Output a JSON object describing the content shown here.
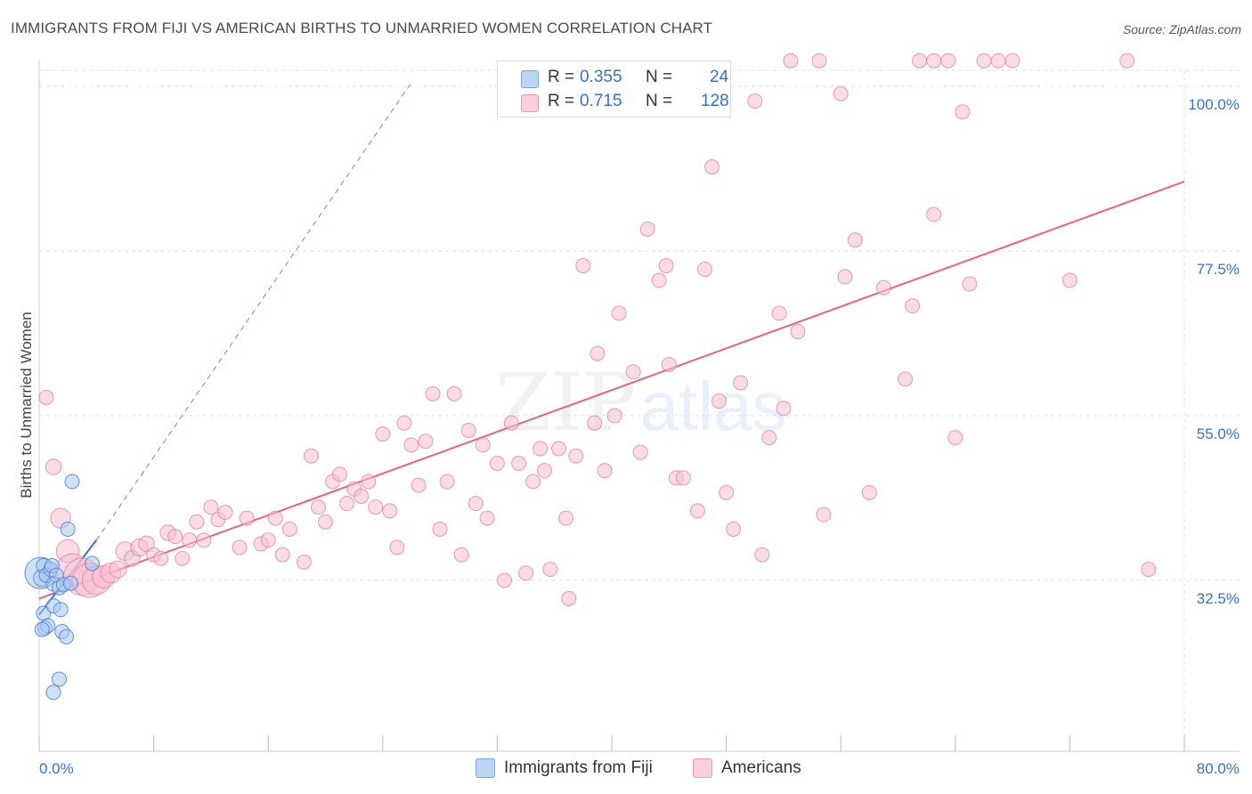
{
  "header": {
    "title": "IMMIGRANTS FROM FIJI VS AMERICAN BIRTHS TO UNMARRIED WOMEN CORRELATION CHART",
    "source": "Source: ZipAtlas.com"
  },
  "watermark": {
    "zip": "ZIP",
    "atlas": "atlas"
  },
  "legend": {
    "r_label": "R =",
    "n_label": "N =",
    "fiji": {
      "r": "0.355",
      "n": "24"
    },
    "americans": {
      "r": "0.715",
      "n": "128"
    }
  },
  "colors": {
    "fiji_fill": "#aac8f0",
    "fiji_stroke": "#4a7fd0",
    "fiji_line": "#3a72cc",
    "americans_fill": "#f7c0d2",
    "americans_stroke": "#e27aa0",
    "americans_line": "#e0628f",
    "grid": "#dddddd",
    "tick_label": "#3a6fc8"
  },
  "chart_data": {
    "type": "scatter",
    "title": "IMMIGRANTS FROM FIJI VS AMERICAN BIRTHS TO UNMARRIED WOMEN CORRELATION CHART",
    "xlabel": "",
    "ylabel": "Births to Unmarried Women",
    "xlim": [
      0,
      80
    ],
    "ylim": [
      11,
      102
    ],
    "x_tick_labels": [
      "0.0%",
      "80.0%"
    ],
    "y_ticks": [
      32.5,
      55.0,
      77.5,
      100.0
    ],
    "y_tick_labels": [
      "32.5%",
      "55.0%",
      "77.5%",
      "100.0%"
    ],
    "grid": true,
    "legend_bottom": [
      "Immigrants from Fiji",
      "Americans"
    ],
    "series": [
      {
        "name": "Immigrants from Fiji",
        "R": 0.355,
        "N": 24,
        "trend": {
          "x0": 0.0,
          "y0": 27.8,
          "x1": 4.0,
          "y1": 38.0
        },
        "trend_dashed": {
          "x0": 4.0,
          "y0": 38.0,
          "x1": 26.0,
          "y1": 100.5
        },
        "points": [
          [
            0.1,
            33.5,
            2.2
          ],
          [
            0.2,
            32.8,
            1.2
          ],
          [
            0.3,
            34.5,
            1.0
          ],
          [
            0.5,
            33.2,
            1.0
          ],
          [
            0.8,
            34.0,
            1.0
          ],
          [
            0.9,
            34.5,
            1.0
          ],
          [
            1.2,
            33.2,
            1.0
          ],
          [
            1.0,
            32.0,
            1.0
          ],
          [
            1.4,
            31.5,
            1.0
          ],
          [
            1.7,
            31.9,
            1.0
          ],
          [
            2.2,
            32.1,
            1.0
          ],
          [
            3.7,
            34.8,
            1.0
          ],
          [
            2.0,
            39.5,
            1.0
          ],
          [
            2.3,
            46.0,
            1.0
          ],
          [
            0.3,
            28.0,
            1.0
          ],
          [
            1.0,
            29.0,
            1.0
          ],
          [
            1.5,
            28.5,
            1.0
          ],
          [
            0.4,
            26.0,
            1.0
          ],
          [
            0.6,
            26.3,
            1.0
          ],
          [
            1.6,
            25.5,
            1.0
          ],
          [
            1.9,
            24.8,
            1.0
          ],
          [
            1.4,
            19.0,
            1.0
          ],
          [
            1.0,
            17.2,
            1.0
          ],
          [
            0.2,
            25.8,
            1.0
          ]
        ]
      },
      {
        "name": "Americans",
        "R": 0.715,
        "N": 128,
        "trend": {
          "x0": 0.0,
          "y0": 30.0,
          "x1": 80.0,
          "y1": 87.0
        },
        "points": [
          [
            0.5,
            57.5,
            1.0
          ],
          [
            1.0,
            48.0,
            1.1
          ],
          [
            1.5,
            41.0,
            1.4
          ],
          [
            2.0,
            36.5,
            1.6
          ],
          [
            2.3,
            34.0,
            2.2
          ],
          [
            3.0,
            33.0,
            2.6
          ],
          [
            3.5,
            32.5,
            2.4
          ],
          [
            4.0,
            32.5,
            2.0
          ],
          [
            4.5,
            33.0,
            1.6
          ],
          [
            5.0,
            33.5,
            1.4
          ],
          [
            5.5,
            34.0,
            1.2
          ],
          [
            6.0,
            36.5,
            1.3
          ],
          [
            6.5,
            35.5,
            1.1
          ],
          [
            7.0,
            37.0,
            1.2
          ],
          [
            7.5,
            37.5,
            1.1
          ],
          [
            8.0,
            36.0,
            1.0
          ],
          [
            8.5,
            35.5,
            1.0
          ],
          [
            9.0,
            39.0,
            1.1
          ],
          [
            9.5,
            38.5,
            1.0
          ],
          [
            10.0,
            35.5,
            1.0
          ],
          [
            10.5,
            38.0,
            1.0
          ],
          [
            11.0,
            40.5,
            1.0
          ],
          [
            11.5,
            38.0,
            1.0
          ],
          [
            12.0,
            42.5,
            1.0
          ],
          [
            12.5,
            40.8,
            1.0
          ],
          [
            13.0,
            41.8,
            1.0
          ],
          [
            14.0,
            37.0,
            1.0
          ],
          [
            14.5,
            41.0,
            1.0
          ],
          [
            15.5,
            37.5,
            1.0
          ],
          [
            16.0,
            38.0,
            1.0
          ],
          [
            16.5,
            41.0,
            1.0
          ],
          [
            17.0,
            36.0,
            1.0
          ],
          [
            17.5,
            39.5,
            1.0
          ],
          [
            18.5,
            35.0,
            1.0
          ],
          [
            19.0,
            49.5,
            1.0
          ],
          [
            19.5,
            42.5,
            1.0
          ],
          [
            20.0,
            40.5,
            1.0
          ],
          [
            20.5,
            46.0,
            1.0
          ],
          [
            21.0,
            47.0,
            1.0
          ],
          [
            21.5,
            43.0,
            1.0
          ],
          [
            22.0,
            45.0,
            1.0
          ],
          [
            22.5,
            44.0,
            1.0
          ],
          [
            23.0,
            46.0,
            1.0
          ],
          [
            23.5,
            42.5,
            1.0
          ],
          [
            24.0,
            52.5,
            1.0
          ],
          [
            24.5,
            42.0,
            1.0
          ],
          [
            25.0,
            37.0,
            1.0
          ],
          [
            25.5,
            54.0,
            1.0
          ],
          [
            26.0,
            51.0,
            1.0
          ],
          [
            26.5,
            45.5,
            1.0
          ],
          [
            27.0,
            51.5,
            1.0
          ],
          [
            27.5,
            58.0,
            1.0
          ],
          [
            28.0,
            39.5,
            1.0
          ],
          [
            28.5,
            46.0,
            1.0
          ],
          [
            29.0,
            58.0,
            1.0
          ],
          [
            29.5,
            36.0,
            1.0
          ],
          [
            30.0,
            53.0,
            1.0
          ],
          [
            30.5,
            43.0,
            1.0
          ],
          [
            31.0,
            51.0,
            1.0
          ],
          [
            31.3,
            41.0,
            1.0
          ],
          [
            32.0,
            48.5,
            1.0
          ],
          [
            32.5,
            32.5,
            1.0
          ],
          [
            33.0,
            54.0,
            1.0
          ],
          [
            33.5,
            48.5,
            1.0
          ],
          [
            34.0,
            33.5,
            1.0
          ],
          [
            34.5,
            46.0,
            1.0
          ],
          [
            35.0,
            50.5,
            1.0
          ],
          [
            35.3,
            47.5,
            1.0
          ],
          [
            35.7,
            34.0,
            1.0
          ],
          [
            36.3,
            50.5,
            1.0
          ],
          [
            36.8,
            41.0,
            1.0
          ],
          [
            37.0,
            30.0,
            1.0
          ],
          [
            37.5,
            49.5,
            1.0
          ],
          [
            38.0,
            75.5,
            1.0
          ],
          [
            38.8,
            54.0,
            1.0
          ],
          [
            39.0,
            63.5,
            1.0
          ],
          [
            39.5,
            47.5,
            1.0
          ],
          [
            40.2,
            55.0,
            1.0
          ],
          [
            40.5,
            69.0,
            1.0
          ],
          [
            41.0,
            98.5,
            1.0
          ],
          [
            41.5,
            61.0,
            1.0
          ],
          [
            42.0,
            50.0,
            1.0
          ],
          [
            42.5,
            80.5,
            1.0
          ],
          [
            43.3,
            73.5,
            1.0
          ],
          [
            43.8,
            75.5,
            1.0
          ],
          [
            44.0,
            62.0,
            1.0
          ],
          [
            44.5,
            46.5,
            1.0
          ],
          [
            45.0,
            46.5,
            1.0
          ],
          [
            46.0,
            42.0,
            1.0
          ],
          [
            46.5,
            75.0,
            1.0
          ],
          [
            47.0,
            89.0,
            1.0
          ],
          [
            47.5,
            57.0,
            1.0
          ],
          [
            48.0,
            44.5,
            1.0
          ],
          [
            48.5,
            39.5,
            1.0
          ],
          [
            49.0,
            59.5,
            1.0
          ],
          [
            50.0,
            98.0,
            1.0
          ],
          [
            50.5,
            36.0,
            1.0
          ],
          [
            51.0,
            52.0,
            1.0
          ],
          [
            51.7,
            69.0,
            1.0
          ],
          [
            52.0,
            56.0,
            1.0
          ],
          [
            52.5,
            103.5,
            1.0
          ],
          [
            53.0,
            66.5,
            1.0
          ],
          [
            54.5,
            103.5,
            1.0
          ],
          [
            54.8,
            41.5,
            1.0
          ],
          [
            56.0,
            99.0,
            1.0
          ],
          [
            56.3,
            74.0,
            1.0
          ],
          [
            57.0,
            79.0,
            1.0
          ],
          [
            58.0,
            44.5,
            1.0
          ],
          [
            59.0,
            72.5,
            1.0
          ],
          [
            60.5,
            60.0,
            1.0
          ],
          [
            61.0,
            70.0,
            1.0
          ],
          [
            61.5,
            103.5,
            1.0
          ],
          [
            62.5,
            103.5,
            1.0
          ],
          [
            62.5,
            82.5,
            1.0
          ],
          [
            63.5,
            103.5,
            1.0
          ],
          [
            64.0,
            52.0,
            1.0
          ],
          [
            64.5,
            96.5,
            1.0
          ],
          [
            65.0,
            73.0,
            1.0
          ],
          [
            66.0,
            103.5,
            1.0
          ],
          [
            67.0,
            103.5,
            1.0
          ],
          [
            68.0,
            103.5,
            1.0
          ],
          [
            72.0,
            73.5,
            1.0
          ],
          [
            76.0,
            103.5,
            1.0
          ],
          [
            77.5,
            34.0,
            1.0
          ]
        ]
      }
    ]
  }
}
